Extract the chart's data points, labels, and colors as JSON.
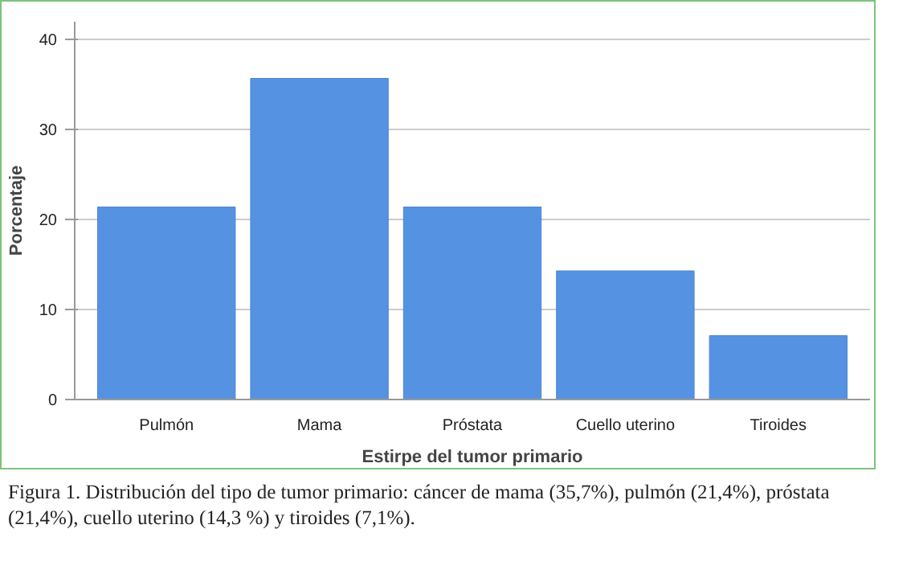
{
  "chart_data": {
    "type": "bar",
    "xlabel": "Estirpe del tumor primario",
    "ylabel": "Porcentaje",
    "categories": [
      "Pulmón",
      "Mama",
      "Próstata",
      "Cuello uterino",
      "Tiroides"
    ],
    "values": [
      21.4,
      35.7,
      21.4,
      14.3,
      7.1
    ],
    "color": "#5593e2",
    "ylim": [
      0,
      42
    ],
    "yticks": [
      0,
      10,
      20,
      30,
      40
    ],
    "grid": "y",
    "annotations": [
      "Figura 1. Distribución del tipo de tumor primario: cáncer de mama (35,7%), pulmón (21,4%), próstata (21,4%), cuello uterino (14,3 %) y tiroides (7,1%)."
    ]
  }
}
